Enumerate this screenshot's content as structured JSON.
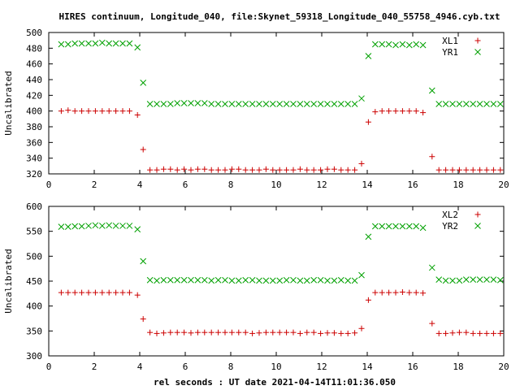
{
  "title": "HIRES continuum, Longitude_040, file:Skynet_59318_Longitude_040_55758_4946.cyb.txt",
  "xlabel": "rel seconds : UT date 2021-04-14T11:01:36.050",
  "colors": {
    "red": "#cc0000",
    "green": "#00a000",
    "axis": "#000000",
    "grid": "#a0a0a0"
  },
  "chart_data": [
    {
      "type": "scatter",
      "ylabel": "Uncalibrated",
      "xlim": [
        0,
        20
      ],
      "ylim": [
        320,
        500
      ],
      "xticks": [
        0,
        2,
        4,
        6,
        8,
        10,
        12,
        14,
        16,
        18,
        20
      ],
      "yticks": [
        320,
        340,
        360,
        380,
        400,
        420,
        440,
        460,
        480,
        500
      ],
      "grid": false,
      "legend": "top-right",
      "series": [
        {
          "name": "XL1",
          "marker": "plus",
          "color": "red",
          "x": [
            0.55,
            0.85,
            1.15,
            1.45,
            1.75,
            2.05,
            2.35,
            2.65,
            2.95,
            3.25,
            3.55,
            3.9,
            4.15,
            4.45,
            4.75,
            5.05,
            5.35,
            5.65,
            5.95,
            6.25,
            6.55,
            6.85,
            7.15,
            7.45,
            7.75,
            8.05,
            8.35,
            8.65,
            8.95,
            9.25,
            9.55,
            9.85,
            10.15,
            10.45,
            10.75,
            11.05,
            11.35,
            11.65,
            11.95,
            12.25,
            12.55,
            12.85,
            13.15,
            13.45,
            13.75,
            14.05,
            14.35,
            14.65,
            14.95,
            15.25,
            15.55,
            15.85,
            16.15,
            16.45,
            16.85,
            17.15,
            17.45,
            17.75,
            18.05,
            18.35,
            18.65,
            18.95,
            19.25,
            19.55,
            19.85
          ],
          "y": [
            400,
            401,
            400,
            400,
            400,
            400,
            400,
            400,
            400,
            400,
            400,
            395,
            351,
            325,
            325,
            326,
            326,
            325,
            326,
            325,
            326,
            326,
            325,
            325,
            325,
            326,
            326,
            325,
            325,
            325,
            326,
            325,
            325,
            325,
            325,
            326,
            325,
            325,
            325,
            326,
            326,
            325,
            325,
            325,
            333,
            386,
            399,
            400,
            400,
            400,
            400,
            400,
            400,
            398,
            342,
            325,
            325,
            325,
            325,
            325,
            325,
            325,
            325,
            325,
            325
          ]
        },
        {
          "name": "YR1",
          "marker": "cross",
          "color": "green",
          "x": [
            0.55,
            0.85,
            1.15,
            1.45,
            1.75,
            2.05,
            2.35,
            2.65,
            2.95,
            3.25,
            3.55,
            3.9,
            4.15,
            4.45,
            4.75,
            5.05,
            5.35,
            5.65,
            5.95,
            6.25,
            6.55,
            6.85,
            7.15,
            7.45,
            7.75,
            8.05,
            8.35,
            8.65,
            8.95,
            9.25,
            9.55,
            9.85,
            10.15,
            10.45,
            10.75,
            11.05,
            11.35,
            11.65,
            11.95,
            12.25,
            12.55,
            12.85,
            13.15,
            13.45,
            13.75,
            14.05,
            14.35,
            14.65,
            14.95,
            15.25,
            15.55,
            15.85,
            16.15,
            16.45,
            16.85,
            17.15,
            17.45,
            17.75,
            18.05,
            18.35,
            18.65,
            18.95,
            19.25,
            19.55,
            19.85
          ],
          "y": [
            485,
            485,
            486,
            486,
            486,
            486,
            487,
            486,
            486,
            486,
            486,
            481,
            436,
            409,
            409,
            409,
            409,
            410,
            410,
            410,
            410,
            410,
            409,
            409,
            409,
            409,
            409,
            409,
            409,
            409,
            409,
            409,
            409,
            409,
            409,
            409,
            409,
            409,
            409,
            409,
            409,
            409,
            409,
            409,
            416,
            470,
            485,
            485,
            485,
            484,
            485,
            484,
            485,
            484,
            426,
            409,
            409,
            409,
            409,
            409,
            409,
            409,
            409,
            409,
            409
          ]
        }
      ]
    },
    {
      "type": "scatter",
      "ylabel": "Uncalibrated",
      "xlim": [
        0,
        20
      ],
      "ylim": [
        300,
        600
      ],
      "xticks": [
        0,
        2,
        4,
        6,
        8,
        10,
        12,
        14,
        16,
        18,
        20
      ],
      "yticks": [
        300,
        350,
        400,
        450,
        500,
        550,
        600
      ],
      "grid": false,
      "legend": "top-right",
      "series": [
        {
          "name": "XL2",
          "marker": "plus",
          "color": "red",
          "x": [
            0.55,
            0.85,
            1.15,
            1.45,
            1.75,
            2.05,
            2.35,
            2.65,
            2.95,
            3.25,
            3.55,
            3.9,
            4.15,
            4.45,
            4.75,
            5.05,
            5.35,
            5.65,
            5.95,
            6.25,
            6.55,
            6.85,
            7.15,
            7.45,
            7.75,
            8.05,
            8.35,
            8.65,
            8.95,
            9.25,
            9.55,
            9.85,
            10.15,
            10.45,
            10.75,
            11.05,
            11.35,
            11.65,
            11.95,
            12.25,
            12.55,
            12.85,
            13.15,
            13.45,
            13.75,
            14.05,
            14.35,
            14.65,
            14.95,
            15.25,
            15.55,
            15.85,
            16.15,
            16.45,
            16.85,
            17.15,
            17.45,
            17.75,
            18.05,
            18.35,
            18.65,
            18.95,
            19.25,
            19.55,
            19.85
          ],
          "y": [
            427,
            427,
            427,
            427,
            427,
            427,
            427,
            427,
            427,
            427,
            427,
            422,
            374,
            347,
            345,
            346,
            347,
            347,
            347,
            346,
            347,
            347,
            347,
            347,
            347,
            347,
            347,
            347,
            345,
            346,
            347,
            347,
            347,
            347,
            347,
            345,
            347,
            347,
            345,
            346,
            346,
            345,
            345,
            346,
            355,
            412,
            427,
            427,
            427,
            427,
            428,
            427,
            427,
            426,
            365,
            345,
            345,
            346,
            347,
            347,
            345,
            345,
            345,
            345,
            345
          ]
        },
        {
          "name": "YR2",
          "marker": "cross",
          "color": "green",
          "x": [
            0.55,
            0.85,
            1.15,
            1.45,
            1.75,
            2.05,
            2.35,
            2.65,
            2.95,
            3.25,
            3.55,
            3.9,
            4.15,
            4.45,
            4.75,
            5.05,
            5.35,
            5.65,
            5.95,
            6.25,
            6.55,
            6.85,
            7.15,
            7.45,
            7.75,
            8.05,
            8.35,
            8.65,
            8.95,
            9.25,
            9.55,
            9.85,
            10.15,
            10.45,
            10.75,
            11.05,
            11.35,
            11.65,
            11.95,
            12.25,
            12.55,
            12.85,
            13.15,
            13.45,
            13.75,
            14.05,
            14.35,
            14.65,
            14.95,
            15.25,
            15.55,
            15.85,
            16.15,
            16.45,
            16.85,
            17.15,
            17.45,
            17.75,
            18.05,
            18.35,
            18.65,
            18.95,
            19.25,
            19.55,
            19.85
          ],
          "y": [
            559,
            559,
            560,
            560,
            561,
            562,
            561,
            562,
            561,
            561,
            561,
            554,
            490,
            452,
            451,
            452,
            452,
            452,
            452,
            452,
            452,
            452,
            451,
            452,
            452,
            451,
            451,
            452,
            452,
            451,
            451,
            451,
            451,
            452,
            452,
            451,
            451,
            452,
            452,
            451,
            451,
            452,
            451,
            451,
            462,
            539,
            560,
            560,
            560,
            560,
            560,
            560,
            560,
            557,
            477,
            453,
            451,
            451,
            451,
            453,
            453,
            453,
            453,
            453,
            452
          ]
        }
      ]
    }
  ]
}
